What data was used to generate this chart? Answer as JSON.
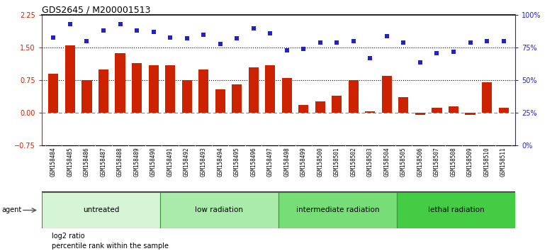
{
  "title": "GDS2645 / M200001513",
  "samples": [
    "GSM158484",
    "GSM158485",
    "GSM158486",
    "GSM158487",
    "GSM158488",
    "GSM158489",
    "GSM158490",
    "GSM158491",
    "GSM158492",
    "GSM158493",
    "GSM158494",
    "GSM158495",
    "GSM158496",
    "GSM158497",
    "GSM158498",
    "GSM158499",
    "GSM158500",
    "GSM158501",
    "GSM158502",
    "GSM158503",
    "GSM158504",
    "GSM158505",
    "GSM158506",
    "GSM158507",
    "GSM158508",
    "GSM158509",
    "GSM158510",
    "GSM158511"
  ],
  "log2_ratio": [
    0.9,
    1.55,
    0.75,
    1.0,
    1.37,
    1.15,
    1.1,
    1.1,
    0.75,
    1.0,
    0.55,
    0.65,
    1.05,
    1.1,
    0.8,
    0.18,
    0.27,
    0.4,
    0.75,
    0.04,
    0.85,
    0.37,
    -0.04,
    0.12,
    0.15,
    -0.04,
    0.7,
    0.12
  ],
  "percentile_rank": [
    83,
    93,
    80,
    88,
    93,
    88,
    87,
    83,
    82,
    85,
    78,
    82,
    90,
    86,
    73,
    74,
    79,
    79,
    80,
    67,
    84,
    79,
    64,
    71,
    72,
    79,
    80,
    80
  ],
  "groups": [
    {
      "label": "untreated",
      "start": 0,
      "end": 7,
      "color": "#d6f5d6"
    },
    {
      "label": "low radiation",
      "start": 7,
      "end": 14,
      "color": "#aaeaaa"
    },
    {
      "label": "intermediate radiation",
      "start": 14,
      "end": 21,
      "color": "#77dd77"
    },
    {
      "label": "lethal radiation",
      "start": 21,
      "end": 28,
      "color": "#44cc44"
    }
  ],
  "bar_color": "#cc2200",
  "dot_color": "#2222cc",
  "ylim_left": [
    -0.75,
    2.25
  ],
  "ylim_right": [
    0,
    100
  ],
  "yticks_left": [
    -0.75,
    0,
    0.75,
    1.5,
    2.25
  ],
  "yticks_right": [
    0,
    25,
    50,
    75,
    100
  ],
  "hlines": [
    0.75,
    1.5
  ],
  "zero_line": 0.0,
  "legend_items": [
    {
      "label": "log2 ratio",
      "color": "#cc2200"
    },
    {
      "label": "percentile rank within the sample",
      "color": "#2222cc"
    }
  ]
}
